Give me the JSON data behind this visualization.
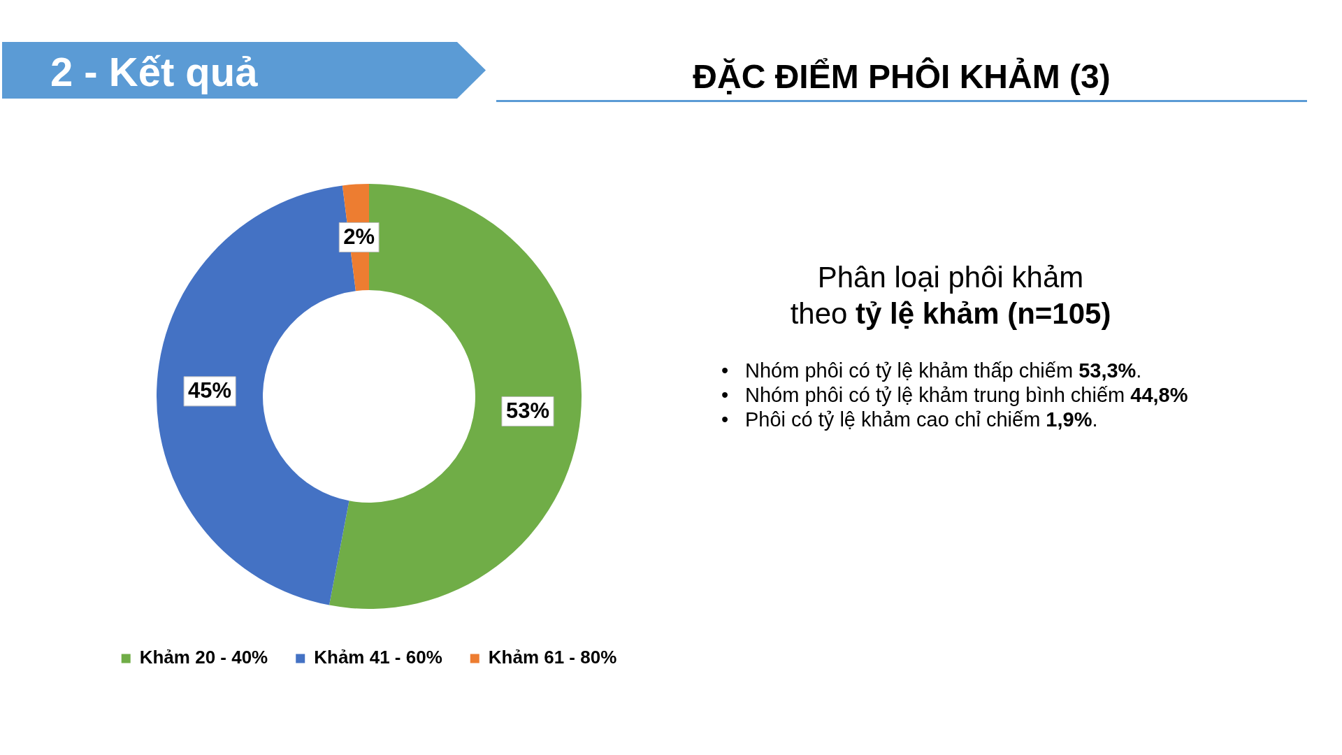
{
  "chart_data": {
    "type": "donut",
    "title": "ĐẶC ĐIỂM PHÔI KHẢM (3)",
    "subtitle": "Phân loại phôi khảm\ntheo tỷ lệ khảm (n=105)",
    "categories": [
      "Khảm 20 - 40%",
      "Khảm 41 - 60%",
      "Khảm 61 - 80%"
    ],
    "values": [
      53,
      45,
      2
    ],
    "value_labels": [
      "53%",
      "45%",
      "2%"
    ],
    "colors": [
      "#70ad47",
      "#4472c4",
      "#ed7d31"
    ],
    "legend": "bottom",
    "annotations": [
      "2 - Kết quả",
      "• Nhóm phôi có tỷ lệ khảm thấp chiếm 53,3%.",
      "• Nhóm phôi có tỷ lệ khảm trung bình chiếm 44,8%",
      "• Phôi có tỷ lệ khảm cao chỉ chiếm 1,9%."
    ]
  }
}
